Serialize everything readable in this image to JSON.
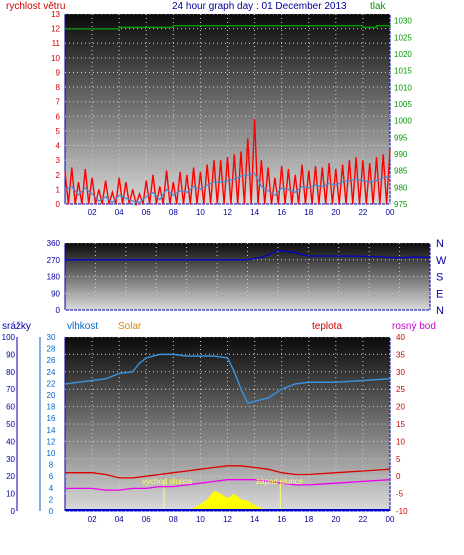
{
  "header": {
    "wind_label": "rychlost větru",
    "title": "24 hour graph day : 01 December 2013",
    "pressure_label": "tlak"
  },
  "bottom_header": {
    "rain_label": "srážky",
    "humidity_label": "vlhkost",
    "solar_label": "Solar",
    "temp_label": "teplota",
    "dew_label": "rosný bod"
  },
  "annotations": {
    "sunrise": "východ slunce",
    "sunset": "západ slunce"
  },
  "colors": {
    "wind_gust": "#ff0000",
    "wind_avg": "#3a8fd8",
    "pressure": "#009900",
    "direction": "#0000cc",
    "humidity": "#3a8fd8",
    "temperature": "#dd0000",
    "dewpoint": "#ee00ee",
    "solar": "#ffff00",
    "title_blue": "#000099"
  },
  "chart_data": [
    {
      "type": "line",
      "x_ticks": [
        "02",
        "04",
        "06",
        "08",
        "10",
        "12",
        "14",
        "16",
        "18",
        "20",
        "22",
        "00"
      ],
      "left_axis": {
        "label": "rychlost větru",
        "ylim": [
          0,
          13
        ],
        "ticks": [
          "0",
          "1",
          "2",
          "3",
          "4",
          "5",
          "6",
          "7",
          "8",
          "9",
          "10",
          "11",
          "12",
          "13"
        ]
      },
      "right_axis": {
        "label": "tlak",
        "ylim": [
          975,
          1032
        ],
        "ticks": [
          "975",
          "980",
          "985",
          "990",
          "995",
          "1000",
          "1005",
          "1010",
          "1015",
          "1020",
          "1025",
          "1030"
        ]
      },
      "series": [
        {
          "name": "gust",
          "x": [
            0,
            0.5,
            1,
            1.5,
            2,
            2.5,
            3,
            3.5,
            4,
            4.5,
            5,
            5.5,
            6,
            6.5,
            7,
            7.5,
            8,
            8.5,
            9,
            9.5,
            10,
            10.5,
            11,
            11.5,
            12,
            12.5,
            13,
            13.5,
            14,
            14.5,
            15,
            15.5,
            16,
            16.5,
            17,
            17.5,
            18,
            18.5,
            19,
            19.5,
            20,
            20.5,
            21,
            21.5,
            22,
            22.5,
            23,
            23.5,
            24
          ],
          "values": [
            2.2,
            2.5,
            1.5,
            2.4,
            1.8,
            1.0,
            1.6,
            0.8,
            1.8,
            1.5,
            1.0,
            0.7,
            1.6,
            2.0,
            1.2,
            2.3,
            1.5,
            2.2,
            2.0,
            2.5,
            2.2,
            2.7,
            3.0,
            3.0,
            3.2,
            3.4,
            3.6,
            4.5,
            5.8,
            3.0,
            2.5,
            1.8,
            2.6,
            2.4,
            2.0,
            2.7,
            2.3,
            2.6,
            2.5,
            2.8,
            2.4,
            2.7,
            3.0,
            3.2,
            3.0,
            2.8,
            3.2,
            3.4,
            3.7
          ]
        },
        {
          "name": "average",
          "x": [
            0,
            0.5,
            1,
            1.5,
            2,
            2.5,
            3,
            3.5,
            4,
            4.5,
            5,
            5.5,
            6,
            6.5,
            7,
            7.5,
            8,
            8.5,
            9,
            9.5,
            10,
            10.5,
            11,
            11.5,
            12,
            12.5,
            13,
            13.5,
            14,
            14.5,
            15,
            15.5,
            16,
            16.5,
            17,
            17.5,
            18,
            18.5,
            19,
            19.5,
            20,
            20.5,
            21,
            21.5,
            22,
            22.5,
            23,
            23.5,
            24
          ],
          "values": [
            1.0,
            1.2,
            0.6,
            1.1,
            0.7,
            0.2,
            0.5,
            0.1,
            0.6,
            0.4,
            0.2,
            0.1,
            0.5,
            0.8,
            0.3,
            1.0,
            0.6,
            0.9,
            0.8,
            1.2,
            1.0,
            1.3,
            1.5,
            1.5,
            1.6,
            1.7,
            1.9,
            2.0,
            2.1,
            1.2,
            0.9,
            0.6,
            1.1,
            1.0,
            0.8,
            1.2,
            1.1,
            1.3,
            1.2,
            1.4,
            1.3,
            1.5,
            1.6,
            1.7,
            1.6,
            1.5,
            1.6,
            1.8,
            1.9
          ]
        },
        {
          "name": "pressure",
          "x": [
            0,
            2,
            4,
            6,
            8,
            10,
            12,
            14,
            16,
            18,
            20,
            22,
            23,
            24
          ],
          "values": [
            1027.5,
            1027.5,
            1028,
            1028,
            1028.5,
            1028.5,
            1028.5,
            1028.5,
            1028.5,
            1028.5,
            1028.5,
            1028,
            1028.5,
            1028
          ]
        }
      ]
    },
    {
      "type": "line",
      "x_ticks": [
        "02",
        "04",
        "06",
        "08",
        "10",
        "12",
        "14",
        "16",
        "18",
        "20",
        "22",
        "00"
      ],
      "left_axis": {
        "ylim": [
          0,
          360
        ],
        "ticks": [
          "0",
          "90",
          "180",
          "270",
          "360"
        ]
      },
      "right_axis": {
        "ticks": [
          "N",
          "W",
          "S",
          "E",
          "N"
        ]
      },
      "series": [
        {
          "name": "direction",
          "x": [
            0,
            2,
            4,
            6,
            8,
            10,
            12,
            13,
            13.5,
            14,
            15,
            16,
            18,
            20,
            22,
            23,
            24
          ],
          "values": [
            270,
            270,
            270,
            270,
            270,
            270,
            270,
            285,
            300,
            320,
            310,
            290,
            290,
            288,
            280,
            285,
            282
          ]
        }
      ]
    },
    {
      "type": "line",
      "x_ticks": [
        "02",
        "04",
        "06",
        "08",
        "10",
        "12",
        "14",
        "16",
        "18",
        "20",
        "22",
        "00"
      ],
      "rain_axis": {
        "label": "srážky",
        "ylim": [
          0,
          100
        ],
        "ticks": [
          "0",
          "10",
          "20",
          "30",
          "40",
          "50",
          "60",
          "70",
          "80",
          "90",
          "100"
        ]
      },
      "humidity_axis": {
        "label": "vlhkost",
        "ylim": [
          0,
          30
        ],
        "ticks": [
          "0",
          "2",
          "4",
          "6",
          "8",
          "10",
          "12",
          "14",
          "16",
          "18",
          "20",
          "22",
          "24",
          "26",
          "28",
          "30"
        ]
      },
      "temp_axis": {
        "label": "teplota",
        "ylim": [
          -10,
          40
        ],
        "ticks": [
          "-10",
          "-5",
          "0",
          "5",
          "10",
          "15",
          "20",
          "25",
          "30",
          "35",
          "40"
        ]
      },
      "series": [
        {
          "name": "humidity",
          "x": [
            0,
            1,
            2,
            3,
            4,
            5,
            5.5,
            6,
            7,
            8,
            9,
            10,
            11,
            12,
            12.5,
            13,
            13.5,
            14,
            15,
            16,
            17,
            18,
            20,
            22,
            24
          ],
          "values": [
            73,
            74,
            75,
            76,
            79,
            80,
            85,
            88,
            90,
            90,
            89,
            89,
            89,
            88,
            80,
            70,
            62,
            63,
            65,
            70,
            73,
            74,
            74,
            75,
            76
          ]
        },
        {
          "name": "temperature",
          "x": [
            0,
            1,
            2,
            3,
            4,
            5,
            6,
            7,
            8,
            9,
            10,
            11,
            12,
            13,
            14,
            15,
            16,
            17,
            18,
            20,
            22,
            24
          ],
          "values": [
            1.0,
            1.0,
            1.0,
            0.5,
            -0.5,
            -0.5,
            0.0,
            0.5,
            1.0,
            1.5,
            2.0,
            2.5,
            3.0,
            3.0,
            2.5,
            2.0,
            1.0,
            0.5,
            0.5,
            1.0,
            1.5,
            2.0
          ]
        },
        {
          "name": "dewpoint",
          "x": [
            0,
            1,
            2,
            3,
            4,
            5,
            6,
            7,
            8,
            9,
            10,
            11,
            12,
            13,
            14,
            15,
            16,
            17,
            18,
            20,
            22,
            24
          ],
          "values": [
            -3.5,
            -3.5,
            -3.5,
            -4.0,
            -4.0,
            -3.5,
            -3.5,
            -3.0,
            -3.0,
            -2.5,
            -2.0,
            -1.5,
            -1.0,
            -1.0,
            -1.0,
            -1.5,
            -2.0,
            -2.5,
            -2.5,
            -2.0,
            -1.5,
            -1.0
          ]
        },
        {
          "name": "solar",
          "x": [
            8.5,
            9,
            9.5,
            10,
            10.5,
            11,
            11.5,
            12,
            12.5,
            13,
            13.5,
            14,
            14.5,
            15
          ],
          "values": [
            0,
            0.3,
            0.5,
            1.2,
            2.0,
            3.5,
            3.0,
            2.2,
            3.0,
            2.0,
            1.8,
            1.0,
            0.5,
            0
          ]
        },
        {
          "name": "sunrise",
          "x": [
            7.3
          ],
          "values": [
            0
          ]
        },
        {
          "name": "sunset",
          "x": [
            15.9
          ],
          "values": [
            0
          ]
        }
      ]
    }
  ]
}
